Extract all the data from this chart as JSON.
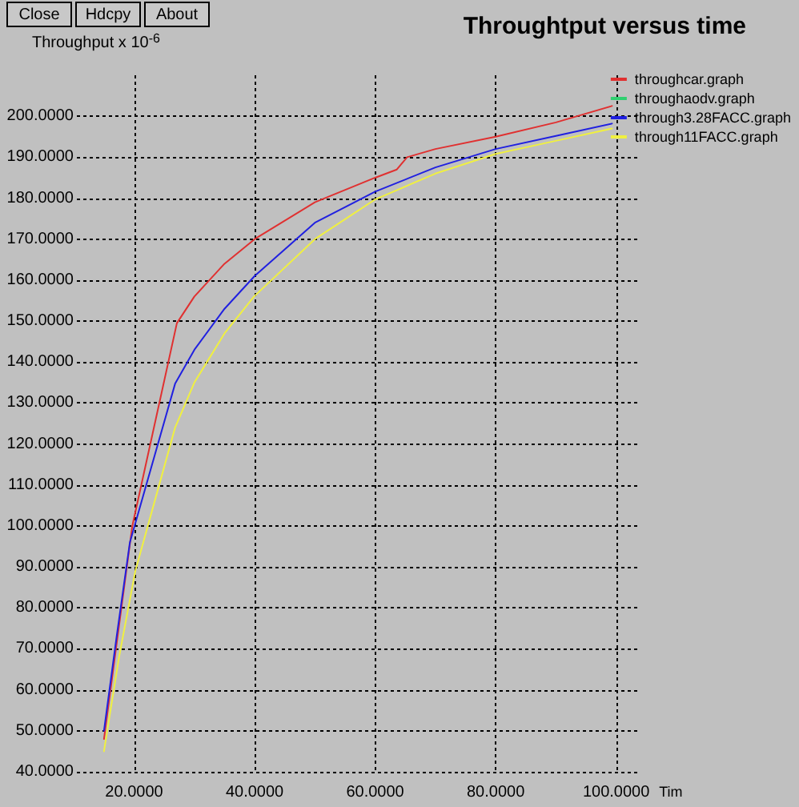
{
  "chart_data": {
    "type": "line",
    "title": "Throughtput versus time",
    "xlabel": "Tim",
    "ylabel": "Throughput x 10$^{-6}$",
    "annotations": [
      "Close",
      "Hdcpy",
      "About"
    ],
    "xlim": [
      10.5,
      103.5
    ],
    "ylim": [
      40,
      210
    ],
    "xticks": [
      {
        "value": 20,
        "label": "20.0000"
      },
      {
        "value": 40,
        "label": "40.0000"
      },
      {
        "value": 60,
        "label": "60.0000"
      },
      {
        "value": 80,
        "label": "80.0000"
      },
      {
        "value": 100,
        "label": "100.0000"
      }
    ],
    "yticks": [
      {
        "value": 40,
        "label": "40.0000"
      },
      {
        "value": 50,
        "label": "50.0000"
      },
      {
        "value": 60,
        "label": "60.0000"
      },
      {
        "value": 70,
        "label": "70.0000"
      },
      {
        "value": 80,
        "label": "80.0000"
      },
      {
        "value": 90,
        "label": "90.0000"
      },
      {
        "value": 100,
        "label": "100.0000"
      },
      {
        "value": 110,
        "label": "110.0000"
      },
      {
        "value": 120,
        "label": "120.0000"
      },
      {
        "value": 130,
        "label": "130.0000"
      },
      {
        "value": 140,
        "label": "140.0000"
      },
      {
        "value": 150,
        "label": "150.0000"
      },
      {
        "value": 160,
        "label": "160.0000"
      },
      {
        "value": 170,
        "label": "170.0000"
      },
      {
        "value": 180,
        "label": "180.0000"
      },
      {
        "value": 190,
        "label": "190.0000"
      },
      {
        "value": 200,
        "label": "200.0000"
      }
    ],
    "grid": true,
    "legend": "top right",
    "marker": "none",
    "line_style": "solid",
    "series": [
      {
        "name": "throughcar.graph",
        "color": "#e03030",
        "x": [
          15,
          19.7,
          27.1,
          30,
          35,
          40,
          50,
          60,
          63.6,
          65.3,
          70,
          80,
          90,
          99.3
        ],
        "values": [
          48,
          100,
          149.5,
          156,
          164,
          170,
          179,
          185,
          187,
          190,
          192,
          195,
          198.5,
          202.5
        ]
      },
      {
        "name": "throughaodv.graph",
        "color": "#30d070"
      },
      {
        "name": "through3.28FACC.graph",
        "color": "#2020e0",
        "x": [
          15,
          17.1,
          19.3,
          26.8,
          30,
          35,
          40,
          50,
          60,
          70,
          80,
          90,
          99.3
        ],
        "values": [
          50,
          73,
          96,
          134.7,
          143,
          153,
          161,
          174,
          181.6,
          187.5,
          192,
          195.2,
          198.2
        ]
      },
      {
        "name": "through11FACC.graph",
        "color": "#f0f040",
        "x": [
          15,
          17.5,
          20.2,
          26.8,
          30,
          35,
          39.9,
          50,
          60,
          70,
          80,
          90,
          99.3
        ],
        "values": [
          45,
          68,
          89,
          124,
          135,
          147,
          156,
          170,
          179.7,
          186,
          190.8,
          194,
          197
        ]
      }
    ]
  }
}
